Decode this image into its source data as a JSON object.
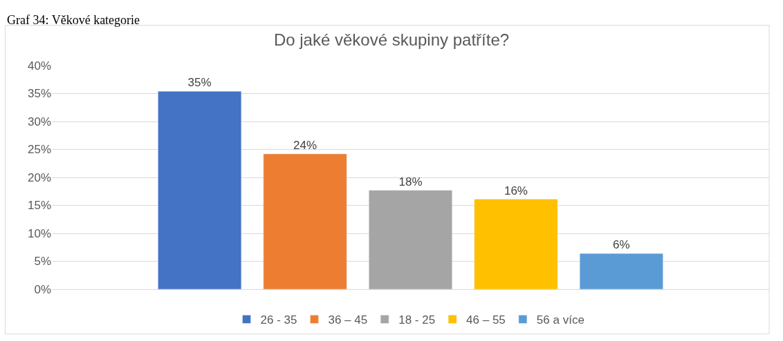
{
  "chart_data": {
    "type": "bar",
    "title": "Do jaké věkové skupiny patříte?",
    "annotations": [
      "Graf 34: Věkové kategorie"
    ],
    "categories": [
      null
    ],
    "series": [
      {
        "name": "26 - 35",
        "color": "#4472c4",
        "values": [
          35.4
        ],
        "value_labels": [
          "35%"
        ]
      },
      {
        "name": "36 – 45",
        "color": "#ed7d31",
        "values": [
          24.2
        ],
        "value_labels": [
          "24%"
        ]
      },
      {
        "name": "18 - 25",
        "color": "#a5a5a5",
        "values": [
          17.7
        ],
        "value_labels": [
          "18%"
        ]
      },
      {
        "name": "46 – 55",
        "color": "#ffc000",
        "values": [
          16.1
        ],
        "value_labels": [
          "16%"
        ]
      },
      {
        "name": "56 a více",
        "color": "#5b9bd5",
        "values": [
          6.4
        ],
        "value_labels": [
          "6%"
        ]
      }
    ],
    "ylim": [
      0,
      40
    ],
    "yticks": [
      {
        "value": 0,
        "label": "0%"
      },
      {
        "value": 5,
        "label": "5%"
      },
      {
        "value": 10,
        "label": "10%"
      },
      {
        "value": 15,
        "label": "15%"
      },
      {
        "value": 20,
        "label": "20%"
      },
      {
        "value": 25,
        "label": "25%"
      },
      {
        "value": 30,
        "label": "30%"
      },
      {
        "value": 35,
        "label": "35%"
      },
      {
        "value": 40,
        "label": "40%"
      }
    ],
    "grid": "y",
    "legend": "bottom"
  }
}
